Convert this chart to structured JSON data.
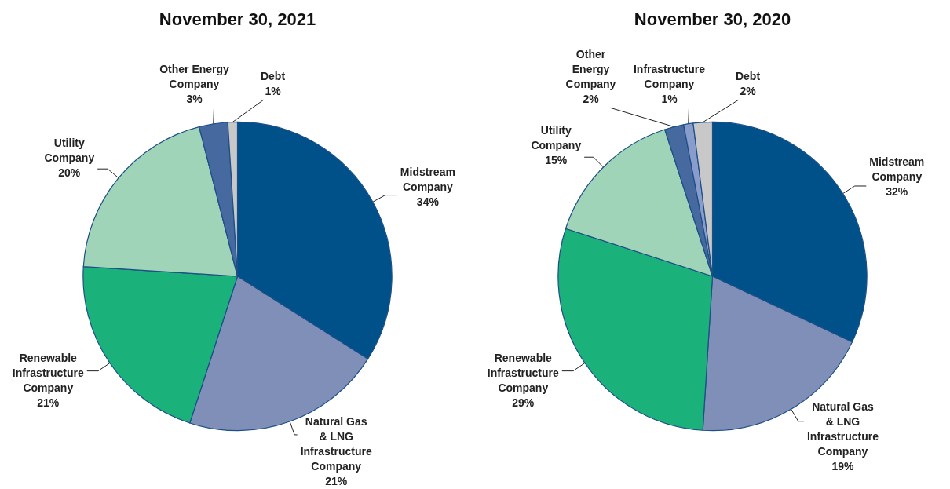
{
  "chart_data": [
    {
      "type": "pie",
      "title": "November 30, 2021",
      "categories": [
        "Midstream\nCompany",
        "Natural Gas\n& LNG\nInfrastructure\nCompany",
        "Renewable\nInfrastructure\nCompany",
        "Utility\nCompany",
        "Other Energy\nCompany",
        "Debt"
      ],
      "values": [
        34,
        21,
        21,
        20,
        3,
        1
      ],
      "value_labels": [
        "34%",
        "21%",
        "21%",
        "20%",
        "3%",
        "1%"
      ],
      "colors": [
        "#00508a",
        "#7f8fb8",
        "#1ab27a",
        "#9fd4b9",
        "#46699f",
        "#c8c8c8"
      ],
      "legend": false
    },
    {
      "type": "pie",
      "title": "November 30, 2020",
      "categories": [
        "Midstream\nCompany",
        "Natural Gas\n& LNG\nInfrastructure\nCompany",
        "Renewable\nInfrastructure\nCompany",
        "Utility\nCompany",
        "Other\nEnergy\nCompany",
        "Infrastructure\nCompany",
        "Debt"
      ],
      "values": [
        32,
        19,
        29,
        15,
        2,
        1,
        2
      ],
      "value_labels": [
        "32%",
        "19%",
        "29%",
        "15%",
        "2%",
        "1%",
        "2%"
      ],
      "colors": [
        "#00508a",
        "#7f8fb8",
        "#1ab27a",
        "#9fd4b9",
        "#46699f",
        "#8a9ccc",
        "#c8c8c8"
      ],
      "legend": false
    }
  ]
}
